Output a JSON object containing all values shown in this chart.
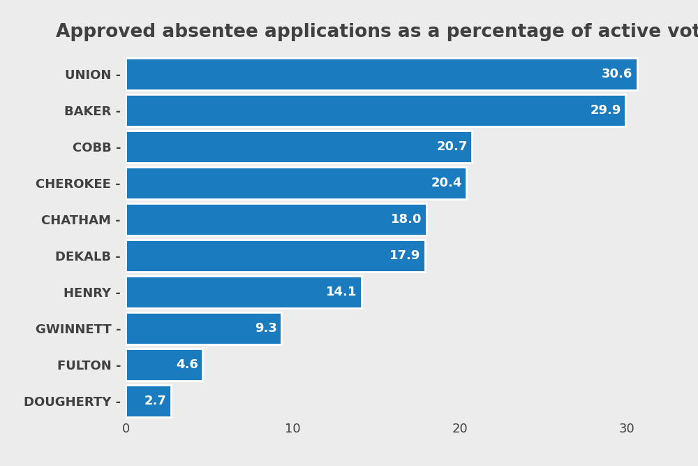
{
  "title": "Approved absentee applications as a percentage of active voters",
  "categories": [
    "UNION",
    "BAKER",
    "COBB",
    "CHEROKEE",
    "CHATHAM",
    "DEKALB",
    "HENRY",
    "GWINNETT",
    "FULTON",
    "DOUGHERTY"
  ],
  "values": [
    30.6,
    29.9,
    20.7,
    20.4,
    18.0,
    17.9,
    14.1,
    9.3,
    4.6,
    2.7
  ],
  "bar_color": "#1a7bbf",
  "background_color": "#ececec",
  "text_color": "#404040",
  "label_color": "#ffffff",
  "title_fontsize": 19,
  "label_fontsize": 13,
  "tick_fontsize": 13,
  "value_fontsize": 13,
  "xlim": [
    0,
    33
  ],
  "xticks": [
    0,
    10,
    20,
    30
  ],
  "bar_height": 0.88
}
